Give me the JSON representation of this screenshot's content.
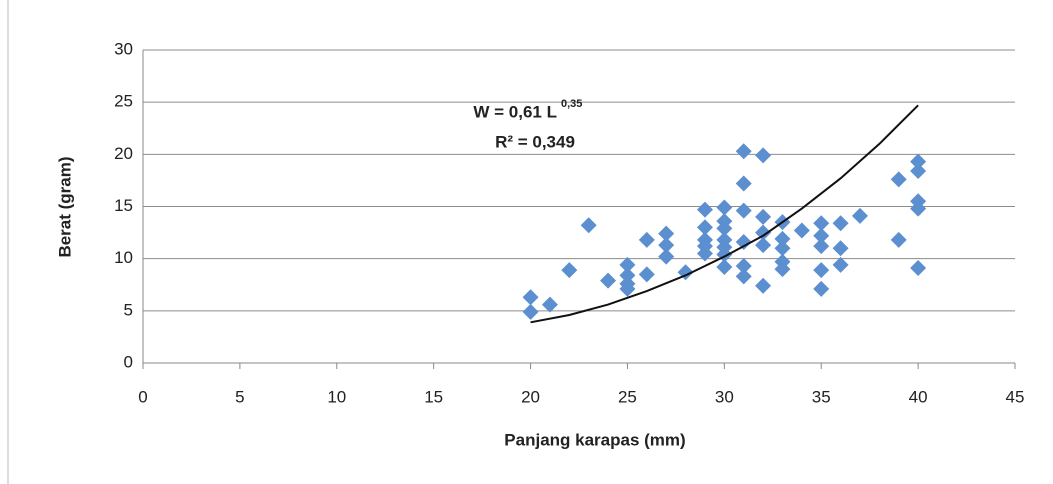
{
  "chart_data": {
    "type": "scatter",
    "x_label": "Panjang karapas (mm)",
    "y_label": "Berat (gram)",
    "annotations": {
      "equation": "W = 0,61 L",
      "exponent": "0,35",
      "r2": "R² = 0,349"
    },
    "xlim": [
      0,
      45
    ],
    "xticks": [
      0,
      5,
      10,
      15,
      20,
      25,
      30,
      35,
      40,
      45
    ],
    "ylim": [
      0,
      30
    ],
    "yticks": [
      0,
      5,
      10,
      15,
      20,
      25,
      30
    ],
    "grid": true,
    "series": [
      {
        "color": "#5b8fcf",
        "x": [
          20,
          20,
          21,
          22,
          23,
          24,
          25,
          25,
          25,
          25,
          26,
          26,
          27,
          27,
          27,
          28,
          29,
          29,
          29,
          29,
          29,
          30,
          30,
          30,
          30,
          30,
          30,
          30,
          31,
          31,
          31,
          31,
          31,
          31,
          32,
          32,
          32,
          32,
          32,
          33,
          33,
          33,
          33,
          33,
          34,
          35,
          35,
          35,
          35,
          35,
          36,
          36,
          36,
          37,
          39,
          39,
          40,
          40,
          40,
          40,
          40
        ],
        "values": [
          6.3,
          4.9,
          5.6,
          8.9,
          13.2,
          7.9,
          9.4,
          8.4,
          7.6,
          7.1,
          8.5,
          11.8,
          12.4,
          11.3,
          10.2,
          8.7,
          14.7,
          13,
          11.8,
          11.2,
          10.5,
          14.9,
          13.6,
          12.9,
          11.8,
          11.1,
          10.4,
          9.2,
          20.3,
          17.2,
          14.6,
          11.6,
          9.3,
          8.3,
          19.9,
          14,
          12.5,
          11.3,
          7.4,
          13.5,
          11.9,
          11,
          9.7,
          9,
          12.7,
          13.4,
          12.2,
          11.2,
          8.9,
          7.1,
          13.4,
          11,
          9.4,
          14.1,
          17.6,
          11.8,
          19.3,
          18.4,
          15.5,
          14.8,
          9.1
        ]
      }
    ],
    "trendline": {
      "color": "#111111",
      "x": [
        20,
        22,
        24,
        26,
        28,
        30,
        32,
        34,
        36,
        38,
        40
      ],
      "values": [
        3.9,
        4.6,
        5.6,
        6.9,
        8.4,
        10.2,
        12.2,
        14.8,
        17.7,
        21.0,
        24.7
      ]
    }
  }
}
